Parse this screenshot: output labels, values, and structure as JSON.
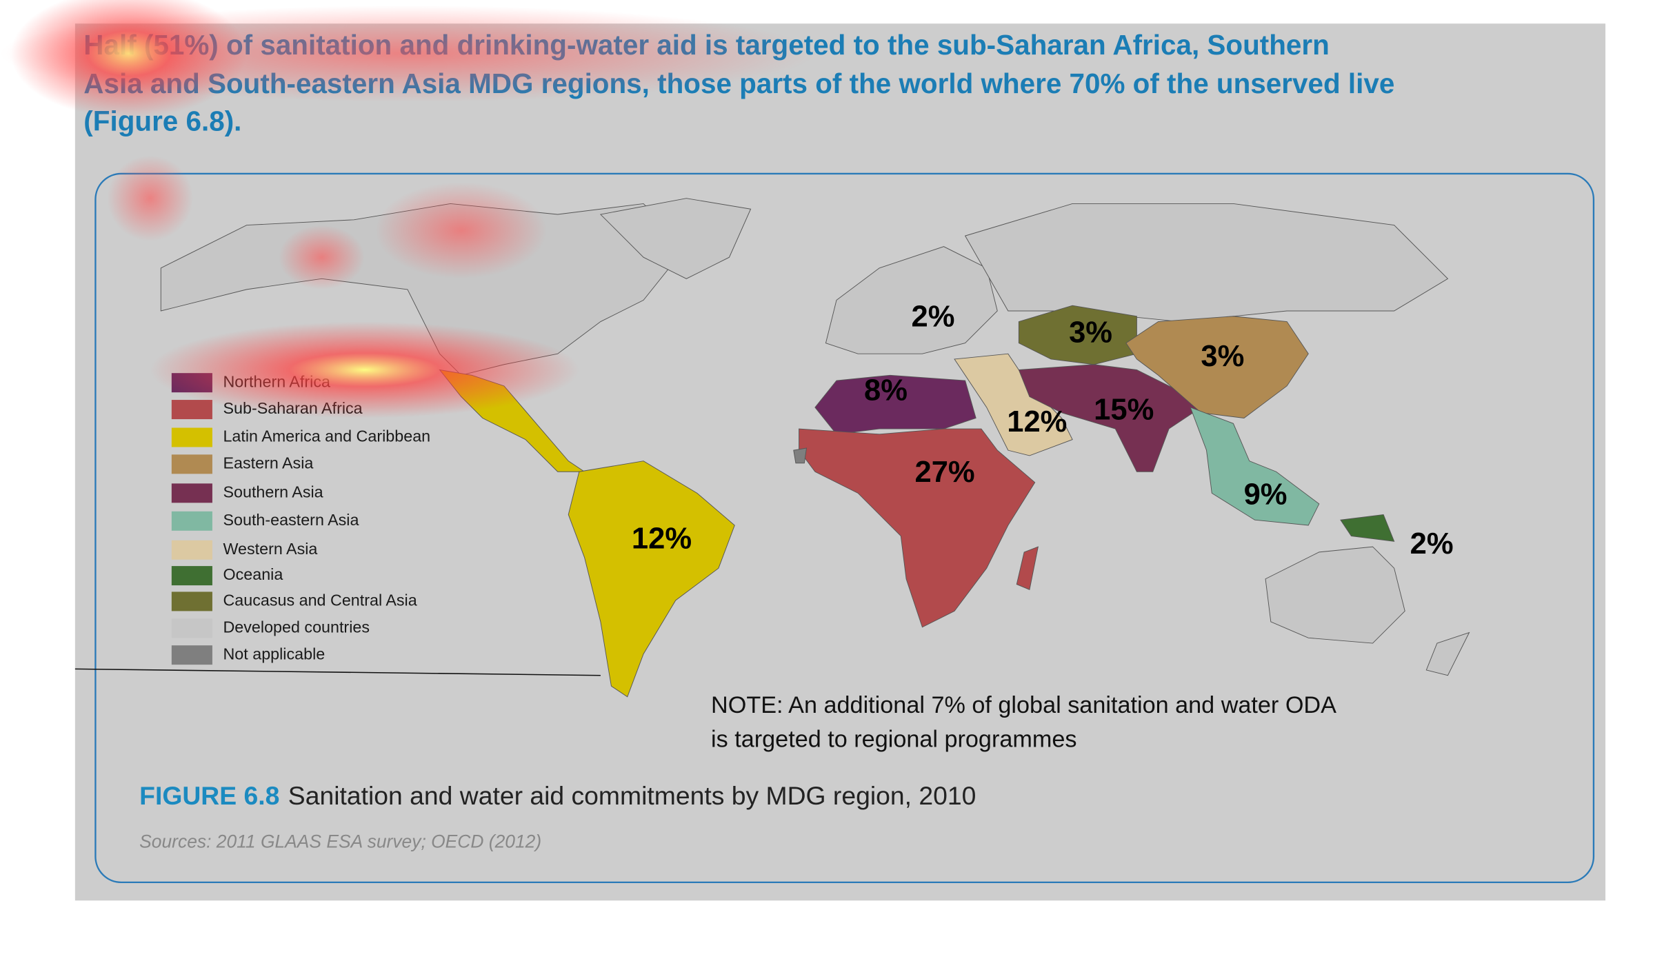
{
  "header": {
    "lines": [
      "Half (51%) of sanitation and drinking-water aid is targeted to the sub-Saharan Africa, Southern",
      "Asia and South-eastern Asia MDG regions, those parts of the world where 70% of the unserved live",
      "(Figure 6.8)."
    ]
  },
  "legend": [
    {
      "label": "Northern Africa",
      "color": "#6b2a5e"
    },
    {
      "label": "Sub-Saharan Africa",
      "color": "#b24a4c"
    },
    {
      "label": "Latin America and Caribbean",
      "color": "#d4c000"
    },
    {
      "label": "Eastern Asia",
      "color": "#b08a52"
    },
    {
      "label": "Southern Asia",
      "color": "#763052"
    },
    {
      "label": "South-eastern Asia",
      "color": "#80b8a2"
    },
    {
      "label": "Western Asia",
      "color": "#dcc9a2"
    },
    {
      "label": "Oceania",
      "color": "#3f6f32"
    },
    {
      "label": "Caucasus and Central Asia",
      "color": "#6f7032"
    },
    {
      "label": "Developed countries",
      "color": "#c6c6c6"
    },
    {
      "label": "Not applicable",
      "color": "#7f7f7f"
    }
  ],
  "map_labels": [
    "2%",
    "3%",
    "3%",
    "8%",
    "12%",
    "15%",
    "27%",
    "9%",
    "2%",
    "12%"
  ],
  "note": {
    "lines": [
      "NOTE: An additional 7% of global sanitation and water ODA",
      "is targeted to regional programmes"
    ]
  },
  "caption": {
    "figure_label": "FIGURE 6.8",
    "title": "Sanitation and water aid commitments by MDG region, 2010"
  },
  "sources": "Sources: 2011 GLAAS ESA survey; OECD (2012)"
}
